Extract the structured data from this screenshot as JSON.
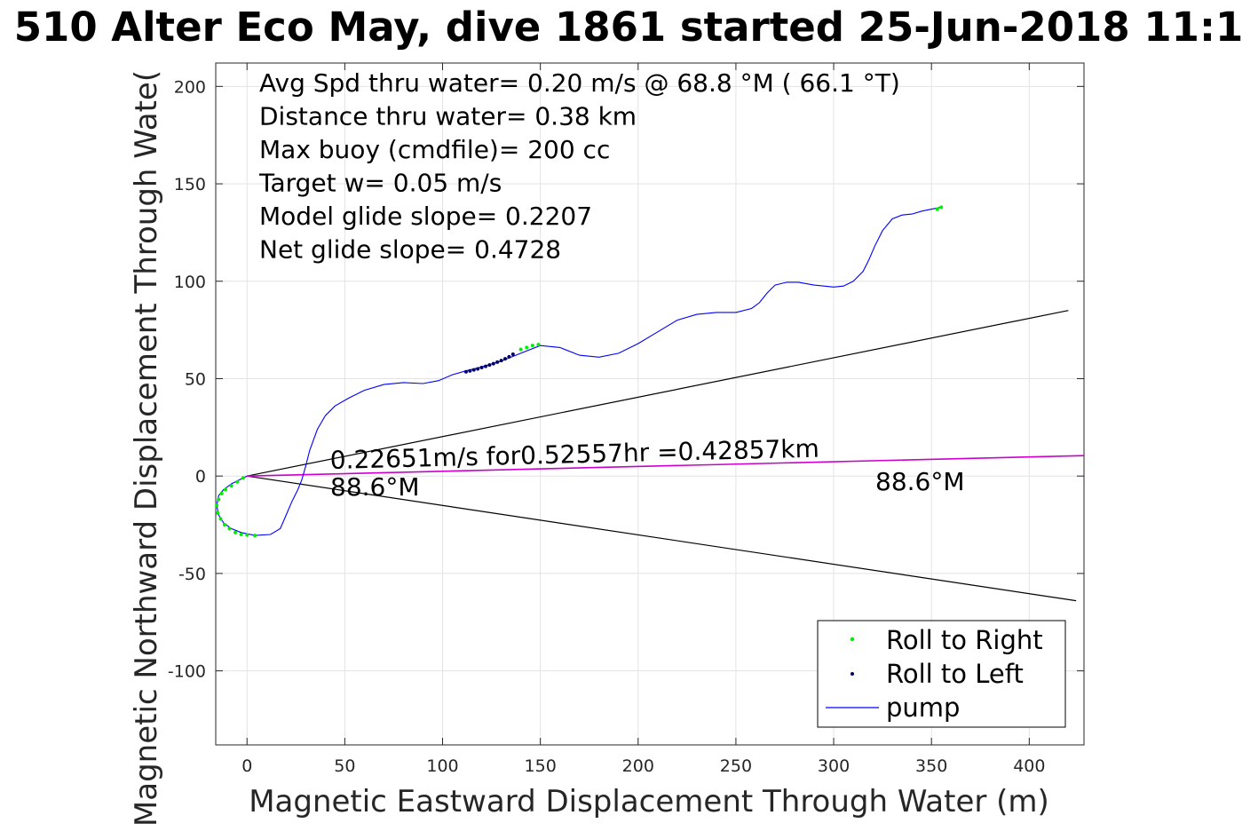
{
  "chart_data": {
    "type": "line",
    "title": "510 Alter Eco May, dive 1861 started 25-Jun-2018 11:1",
    "xlabel": "Magnetic Eastward Displacement Through Water (m)",
    "ylabel": "Magnetic Northward Displacement Through Wate(",
    "xlim": [
      -16,
      428
    ],
    "ylim": [
      -138,
      212
    ],
    "xticks": [
      0,
      50,
      100,
      150,
      200,
      250,
      300,
      350,
      400
    ],
    "yticks": [
      -100,
      -50,
      0,
      50,
      100,
      150,
      200
    ],
    "grid": true,
    "legend_position": "bottom-right",
    "info_lines": [
      "Avg Spd thru water=  0.20 m/s @  68.8 °M ( 66.1 °T)",
      "Distance thru water=  0.38 km",
      "Max buoy (cmdfile)= 200 cc",
      "Target w= 0.05 m/s",
      "Model glide slope= 0.2207",
      "Net glide slope= 0.4728"
    ],
    "annotations": {
      "current_text": "0.22651m/s for0.52557hr =0.42857km",
      "heading_left": "88.6°M",
      "heading_right": "88.6°M"
    },
    "colors": {
      "track": "#0000ff",
      "roll_right": "#00ee00",
      "roll_left": "#000066",
      "current_line": "#cc00cc",
      "cone_lines": "#000000"
    },
    "series": [
      {
        "name": "pump",
        "kind": "line",
        "x": [
          0,
          -4,
          -8,
          -12,
          -14.5,
          -15.5,
          -14.5,
          -12,
          -8,
          -3,
          4,
          12,
          17,
          20,
          23,
          26,
          28,
          30,
          32,
          36,
          40,
          45,
          52,
          60,
          70,
          80,
          90,
          98,
          105,
          112,
          120,
          130,
          140,
          150,
          160,
          170,
          180,
          190,
          200,
          210,
          220,
          230,
          240,
          250,
          258,
          262,
          266,
          270,
          276,
          282,
          290,
          300,
          305,
          310,
          315,
          318,
          321,
          325,
          330,
          335,
          340,
          345,
          350,
          355
        ],
        "y": [
          0,
          -2,
          -4,
          -7,
          -10,
          -15,
          -20,
          -24,
          -27,
          -29,
          -30.5,
          -30,
          -27,
          -20,
          -13,
          -7,
          -2,
          5,
          13,
          24,
          31,
          36,
          40,
          44,
          47,
          48,
          47.5,
          49,
          52,
          54,
          56,
          59,
          63,
          67,
          66,
          62,
          61,
          63,
          68,
          74,
          80,
          83,
          84,
          84,
          86,
          89,
          94,
          98,
          99.5,
          99.5,
          98,
          97,
          97.5,
          100,
          105,
          111,
          118,
          126,
          132,
          134,
          134.5,
          136,
          137,
          138
        ]
      },
      {
        "name": "Roll to Right",
        "kind": "points",
        "x": [
          -2,
          -5,
          -8,
          -11,
          -13,
          -14.5,
          -15.5,
          -15,
          -13.5,
          -11.5,
          -9,
          -6,
          -3,
          0,
          4,
          140,
          143,
          146,
          149,
          353,
          355
        ],
        "y": [
          -1,
          -3,
          -5,
          -7,
          -9,
          -12,
          -15,
          -19,
          -22,
          -25,
          -27,
          -29,
          -30,
          -30.3,
          -30.5,
          65,
          66,
          67,
          67.5,
          137,
          138
        ]
      },
      {
        "name": "Roll to Left",
        "kind": "points",
        "x": [
          112,
          114,
          116,
          118,
          120,
          122,
          124,
          126,
          128,
          130,
          132,
          134,
          136
        ],
        "y": [
          53.5,
          54,
          54.5,
          55,
          55.7,
          56.3,
          57,
          57.7,
          58.5,
          59.3,
          60.2,
          61.2,
          62.5
        ]
      }
    ],
    "reference_lines": [
      {
        "name": "upper cone",
        "x": [
          0,
          420
        ],
        "y": [
          0,
          85
        ]
      },
      {
        "name": "lower cone",
        "x": [
          0,
          424
        ],
        "y": [
          0,
          -64
        ]
      },
      {
        "name": "current",
        "x": [
          0,
          428
        ],
        "y": [
          0,
          10.5
        ]
      }
    ]
  }
}
